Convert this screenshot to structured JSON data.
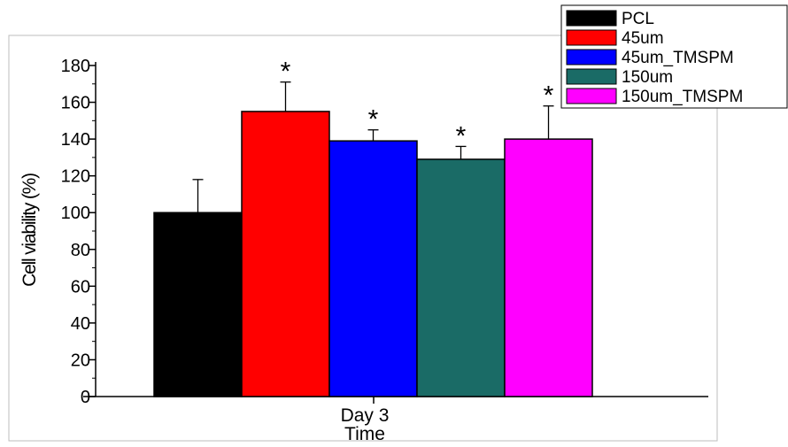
{
  "chart_data": {
    "type": "bar",
    "title": "",
    "xlabel": "Time",
    "ylabel": "Cell viability (%)",
    "categories": [
      "Day 3"
    ],
    "ylim": [
      0,
      180
    ],
    "yticks": [
      0,
      20,
      40,
      60,
      80,
      100,
      120,
      140,
      160,
      180
    ],
    "grid": false,
    "legend_position": "top-right",
    "series": [
      {
        "name": "PCL",
        "values": [
          100
        ],
        "error": [
          18
        ],
        "color": "#000000",
        "significance": ""
      },
      {
        "name": "45um",
        "values": [
          155
        ],
        "error": [
          16
        ],
        "color": "#ff0000",
        "significance": "*"
      },
      {
        "name": "45um_TMSPM",
        "values": [
          139
        ],
        "error": [
          6
        ],
        "color": "#0000ff",
        "significance": "*"
      },
      {
        "name": "150um",
        "values": [
          129
        ],
        "error": [
          7
        ],
        "color": "#1a6b66",
        "significance": "*"
      },
      {
        "name": "150um_TMSPM",
        "values": [
          140
        ],
        "error": [
          18
        ],
        "color": "#ff00ff",
        "significance": "*"
      }
    ]
  }
}
